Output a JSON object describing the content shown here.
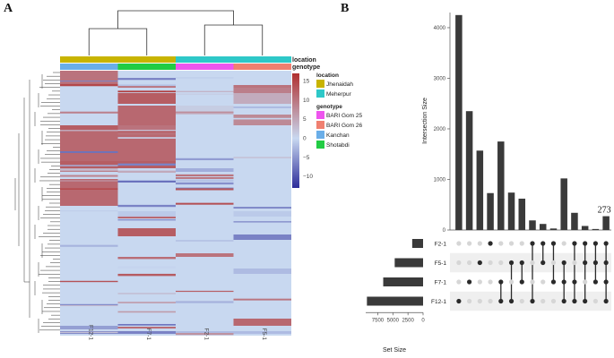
{
  "panel_labels": {
    "a": "A",
    "b": "B"
  },
  "chart_data": [
    {
      "type": "heatmap",
      "samples": [
        "F12-1",
        "F7-1",
        "F2-1",
        "F5-1"
      ],
      "annotation_tracks": [
        "location",
        "genotype"
      ],
      "sample_location": [
        "Jhenaidah",
        "Jhenaidah",
        "Meherpur",
        "Meherpur"
      ],
      "sample_genotype": [
        "Kanchan",
        "Shotabdi",
        "BARI Gom 25",
        "BARI Gom 26"
      ],
      "legend_location": {
        "title": "location",
        "items": [
          {
            "label": "Jhenaidah",
            "color": "#c8b400"
          },
          {
            "label": "Meherpur",
            "color": "#2ec8c8"
          }
        ]
      },
      "legend_genotype": {
        "title": "genotype",
        "items": [
          {
            "label": "BARI Gom 25",
            "color": "#ee55ee"
          },
          {
            "label": "BARI Gom 26",
            "color": "#f08070"
          },
          {
            "label": "Kanchan",
            "color": "#6aaee8"
          },
          {
            "label": "Shotabdi",
            "color": "#22cc44"
          }
        ]
      },
      "color_scale": {
        "ticks": [
          "15",
          "10",
          "5",
          "0",
          "−5",
          "−10"
        ],
        "range": [
          -13,
          17
        ],
        "colors": [
          "#2c2c9a",
          "#c8d8f0",
          "#b03030"
        ]
      },
      "column_dendrogram": "((F12-1,F7-1),(F2-1,F5-1))"
    },
    {
      "type": "bar",
      "title": "",
      "ylabel": "Intersection Size",
      "yticks": [
        "0",
        "1000",
        "2000",
        "3000",
        "4000"
      ],
      "ylim": [
        0,
        4300
      ],
      "intersection_values": [
        4250,
        2350,
        1570,
        730,
        1750,
        740,
        620,
        190,
        120,
        30,
        1020,
        340,
        80,
        20,
        273
      ],
      "highlight_label": "273",
      "sets": [
        "F2-1",
        "F5-1",
        "F7-1",
        "F12-1"
      ],
      "set_sizes": [
        1800,
        4700,
        6600,
        9300
      ],
      "set_size_xlabel": "Set Size",
      "set_size_ticks": [
        "7500",
        "5000",
        "2500",
        "0"
      ],
      "membership": [
        [
          "F12-1"
        ],
        [
          "F7-1"
        ],
        [
          "F5-1"
        ],
        [
          "F2-1"
        ],
        [
          "F7-1",
          "F12-1"
        ],
        [
          "F5-1",
          "F12-1"
        ],
        [
          "F5-1",
          "F7-1"
        ],
        [
          "F2-1",
          "F12-1"
        ],
        [
          "F2-1",
          "F5-1"
        ],
        [
          "F2-1",
          "F7-1"
        ],
        [
          "F5-1",
          "F7-1",
          "F12-1"
        ],
        [
          "F2-1",
          "F7-1",
          "F12-1"
        ],
        [
          "F2-1",
          "F5-1",
          "F12-1"
        ],
        [
          "F2-1",
          "F5-1",
          "F7-1"
        ],
        [
          "F2-1",
          "F5-1",
          "F7-1",
          "F12-1"
        ]
      ]
    }
  ]
}
